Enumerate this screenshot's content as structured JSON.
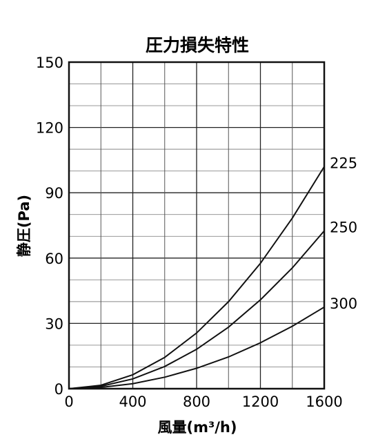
{
  "chart_data": {
    "type": "line",
    "title": "圧力損失特性",
    "xlabel": "風量(m³/h)",
    "ylabel": "静圧(Pa)",
    "xlim": [
      0,
      1600
    ],
    "ylim": [
      0,
      150
    ],
    "xticks": [
      0,
      400,
      800,
      1200,
      1600
    ],
    "yticks": [
      0,
      30,
      60,
      90,
      120,
      150
    ],
    "x_tick_labels": [
      "0",
      "400",
      "800",
      "1200",
      "1600"
    ],
    "y_tick_labels": [
      "0",
      "30",
      "60",
      "90",
      "120",
      "150"
    ],
    "grid": true,
    "legend": "none",
    "series": [
      {
        "name": "225",
        "x": [
          0,
          200,
          400,
          600,
          800,
          1000,
          1200,
          1400,
          1600
        ],
        "values": [
          0,
          1.6,
          6.4,
          14.4,
          25.6,
          40.0,
          57.6,
          78.4,
          102.0
        ]
      },
      {
        "name": "250",
        "x": [
          0,
          200,
          400,
          600,
          800,
          1000,
          1200,
          1400,
          1600
        ],
        "values": [
          0,
          1.1,
          4.5,
          10.2,
          18.1,
          28.3,
          40.8,
          55.5,
          72.5
        ]
      },
      {
        "name": "300",
        "x": [
          0,
          200,
          400,
          600,
          800,
          1000,
          1200,
          1400,
          1600
        ],
        "values": [
          0,
          0.6,
          2.3,
          5.3,
          9.4,
          14.6,
          21.1,
          28.7,
          37.5
        ]
      }
    ]
  }
}
